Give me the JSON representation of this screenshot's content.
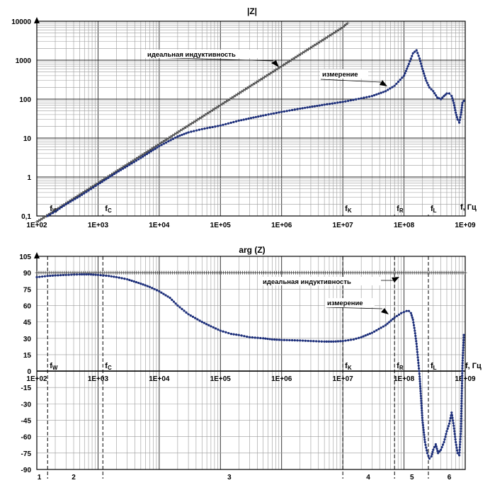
{
  "chart_data": [
    {
      "type": "line",
      "title": "|Z|",
      "xscale": "log",
      "yscale": "log",
      "xlim": [
        100,
        1000000000
      ],
      "ylim": [
        0.1,
        10000
      ],
      "x_tick_labels": [
        "1E+02",
        "1E+03",
        "1E+04",
        "1E+05",
        "1E+06",
        "1E+07",
        "1E+08",
        "1E+09"
      ],
      "y_tick_labels": [
        "0,1",
        "1",
        "10",
        "100",
        "1000",
        "10000"
      ],
      "grid": true,
      "freq_markers": [
        {
          "sym": "f",
          "sub": "W",
          "x": 150
        },
        {
          "sym": "f",
          "sub": "C",
          "x": 1200
        },
        {
          "sym": "f",
          "sub": "K",
          "x": 10000000
        },
        {
          "sym": "f",
          "sub": "R",
          "x": 70000000
        },
        {
          "sym": "f",
          "sub": "L",
          "x": 250000000
        }
      ],
      "axis_unit": "f, Гц",
      "series": [
        {
          "name": "идеальная индуктивность",
          "x": [
            100,
            1000,
            10000,
            100000,
            1000000,
            10000000,
            12000000
          ],
          "y": [
            0.07,
            0.7,
            7,
            70,
            700,
            7000,
            9000
          ]
        },
        {
          "name": "измерение",
          "x": [
            150,
            200,
            300,
            500,
            700,
            1000,
            2000,
            3000,
            5000,
            10000,
            20000,
            30000,
            50000,
            100000,
            200000,
            500000,
            1000000,
            2000000,
            5000000,
            10000000,
            20000000,
            30000000,
            50000000,
            70000000,
            100000000,
            120000000,
            140000000,
            160000000,
            180000000,
            200000000,
            230000000,
            260000000,
            300000000,
            350000000,
            400000000,
            450000000,
            500000000,
            550000000,
            600000000,
            650000000,
            700000000,
            750000000,
            800000000,
            850000000,
            900000000,
            950000000
          ],
          "y": [
            0.1,
            0.13,
            0.2,
            0.32,
            0.45,
            0.65,
            1.3,
            1.9,
            3.1,
            6.2,
            11,
            14,
            17,
            21,
            28,
            38,
            47,
            57,
            72,
            85,
            105,
            120,
            160,
            220,
            400,
            800,
            1500,
            1800,
            1100,
            600,
            300,
            200,
            160,
            110,
            100,
            120,
            140,
            140,
            120,
            80,
            45,
            30,
            25,
            40,
            80,
            90
          ]
        }
      ],
      "annotations": [
        "идеальная индуктивность",
        "измерение"
      ]
    },
    {
      "type": "line",
      "title": "arg (Z)",
      "xscale": "log",
      "xlim": [
        100,
        1000000000
      ],
      "ylim": [
        -90,
        105
      ],
      "yticks": [
        105,
        90,
        75,
        60,
        45,
        30,
        15,
        0,
        -15,
        -30,
        -45,
        -60,
        -75,
        -90
      ],
      "x_tick_labels": [
        "1E+02",
        "1E+03",
        "1E+04",
        "1E+05",
        "1E+06",
        "1E+07",
        "1E+08",
        "1E+09"
      ],
      "grid": true,
      "freq_markers": [
        {
          "sym": "f",
          "sub": "W",
          "x": 150
        },
        {
          "sym": "f",
          "sub": "C",
          "x": 1200
        },
        {
          "sym": "f",
          "sub": "K",
          "x": 10000000
        },
        {
          "sym": "f",
          "sub": "R",
          "x": 70000000
        },
        {
          "sym": "f",
          "sub": "L",
          "x": 250000000
        }
      ],
      "axis_unit": "f, Гц",
      "regions": [
        {
          "label": "1",
          "x": 110
        },
        {
          "label": "2",
          "x": 400
        },
        {
          "label": "3",
          "x": 140000
        },
        {
          "label": "4",
          "x": 26000000
        },
        {
          "label": "5",
          "x": 135000000
        },
        {
          "label": "6",
          "x": 550000000
        }
      ],
      "series": [
        {
          "name": "идеальная индуктивность",
          "x": [
            100,
            1000000000
          ],
          "y": [
            90,
            90
          ]
        },
        {
          "name": "измерение",
          "x": [
            100,
            150,
            200,
            300,
            500,
            700,
            1000,
            1500,
            2000,
            3000,
            5000,
            7000,
            10000,
            15000,
            20000,
            30000,
            50000,
            70000,
            100000,
            150000,
            200000,
            300000,
            500000,
            700000,
            1000000,
            2000000,
            3000000,
            5000000,
            7000000,
            10000000,
            15000000,
            20000000,
            30000000,
            50000000,
            70000000,
            90000000,
            110000000,
            120000000,
            130000000,
            140000000,
            150000000,
            160000000,
            170000000,
            180000000,
            190000000,
            200000000,
            220000000,
            240000000,
            260000000,
            280000000,
            300000000,
            330000000,
            360000000,
            400000000,
            450000000,
            500000000,
            550000000,
            600000000,
            650000000,
            700000000,
            750000000,
            800000000,
            850000000,
            900000000,
            950000000
          ],
          "y": [
            86,
            87,
            87.5,
            88,
            88.5,
            88.5,
            88,
            87,
            86,
            84,
            80,
            77,
            73,
            67,
            60,
            52,
            45,
            41,
            37,
            34,
            33,
            31,
            30,
            29,
            28.5,
            28,
            27.5,
            27,
            27,
            27.5,
            29,
            31,
            35,
            42,
            49,
            53,
            55,
            55,
            53,
            47,
            37,
            25,
            10,
            -5,
            -25,
            -45,
            -65,
            -75,
            -80,
            -78,
            -72,
            -67,
            -75,
            -72,
            -65,
            -55,
            -48,
            -38,
            -50,
            -65,
            -75,
            -77,
            -55,
            5,
            33
          ]
        }
      ],
      "annotations": [
        "идеальная индуктивность",
        "измерение"
      ]
    }
  ]
}
